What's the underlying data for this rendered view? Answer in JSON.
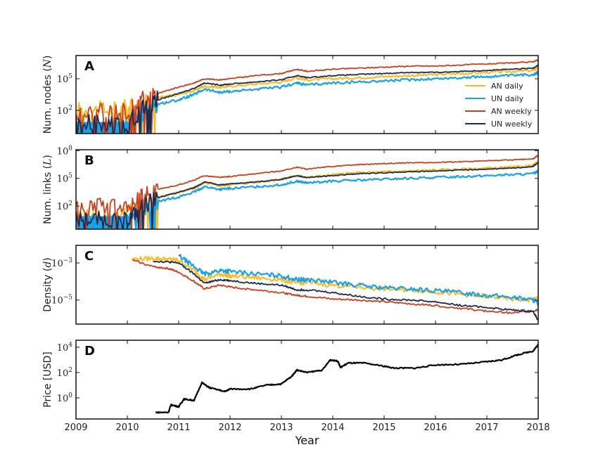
{
  "chart_data": {
    "type": "line",
    "xlabel": "Year",
    "xlim": [
      2009,
      2018
    ],
    "xticks": [
      "2009",
      "2010",
      "2011",
      "2012",
      "2013",
      "2014",
      "2015",
      "2016",
      "2017",
      "2018"
    ],
    "series_colors": {
      "AN daily": "#f6be2c",
      "UN daily": "#1aa1e6",
      "AN weekly": "#c9401e",
      "UN weekly": "#1f2a4f"
    },
    "legend": {
      "placement": "lower-right of panel A",
      "entries": [
        "AN daily",
        "UN daily",
        "AN weekly",
        "UN weekly"
      ]
    },
    "panels": [
      {
        "letter": "A",
        "ylabel": "Num. nodes (N)",
        "yscale": "log",
        "ylim_log10": [
          -0.2,
          7.2
        ],
        "yticks_log10": [
          2,
          5
        ],
        "ytick_labels": [
          "10^2",
          "10^5"
        ],
        "x": [
          2009.0,
          2009.5,
          2010.0,
          2010.3,
          2010.6,
          2011.0,
          2011.3,
          2011.5,
          2011.8,
          2012.0,
          2012.5,
          2013.0,
          2013.3,
          2013.5,
          2014.0,
          2014.5,
          2015.0,
          2015.5,
          2016.0,
          2016.5,
          2017.0,
          2017.5,
          2017.9,
          2018.0
        ],
        "series": [
          {
            "name": "AN daily",
            "log10_values": [
              2.0,
              2.0,
              2.2,
              2.5,
              3.2,
              3.5,
              3.9,
              4.3,
              4.2,
              4.3,
              4.5,
              4.7,
              5.1,
              4.9,
              5.0,
              5.1,
              5.2,
              5.3,
              5.4,
              5.5,
              5.6,
              5.7,
              5.8,
              6.0
            ]
          },
          {
            "name": "UN daily",
            "log10_values": [
              0.5,
              0.5,
              0.5,
              1.8,
              2.6,
              3.0,
              3.5,
              4.0,
              3.7,
              3.8,
              4.0,
              4.2,
              4.6,
              4.4,
              4.6,
              4.7,
              4.8,
              4.9,
              5.0,
              5.1,
              5.2,
              5.3,
              5.4,
              5.6
            ]
          },
          {
            "name": "AN weekly",
            "log10_values": [
              1.7,
              1.8,
              2.0,
              3.0,
              3.6,
              4.2,
              4.6,
              5.0,
              4.9,
              5.0,
              5.3,
              5.5,
              5.9,
              5.7,
              5.9,
              6.0,
              6.1,
              6.2,
              6.2,
              6.3,
              6.4,
              6.5,
              6.6,
              6.8
            ]
          },
          {
            "name": "UN weekly",
            "log10_values": [
              0.8,
              0.7,
              0.6,
              2.3,
              3.0,
              3.6,
              4.1,
              4.6,
              4.4,
              4.5,
              4.7,
              4.9,
              5.3,
              5.1,
              5.3,
              5.4,
              5.5,
              5.6,
              5.6,
              5.7,
              5.8,
              5.9,
              6.0,
              6.3
            ]
          }
        ]
      },
      {
        "letter": "B",
        "ylabel": "Num. links (L)",
        "yscale": "log",
        "ylim_log10": [
          -0.5,
          8.1
        ],
        "yticks_log10": [
          2,
          5,
          8
        ],
        "ytick_labels": [
          "10^2",
          "10^5",
          "10^8"
        ],
        "x": [
          2009.0,
          2009.5,
          2010.0,
          2010.3,
          2010.6,
          2011.0,
          2011.3,
          2011.5,
          2011.8,
          2012.0,
          2012.5,
          2013.0,
          2013.3,
          2013.5,
          2014.0,
          2014.5,
          2015.0,
          2015.5,
          2016.0,
          2016.5,
          2017.0,
          2017.5,
          2017.9,
          2018.0
        ],
        "series": [
          {
            "name": "AN daily",
            "log10_values": [
              1.0,
              1.0,
              1.2,
              2.3,
              3.0,
              3.5,
              3.9,
              4.5,
              4.2,
              4.3,
              4.6,
              4.9,
              5.3,
              5.1,
              5.4,
              5.6,
              5.7,
              5.8,
              5.9,
              6.0,
              6.1,
              6.2,
              6.4,
              6.8
            ]
          },
          {
            "name": "UN daily",
            "log10_values": [
              0.3,
              0.2,
              0.2,
              1.6,
              2.5,
              3.0,
              3.5,
              4.1,
              3.8,
              3.9,
              4.1,
              4.3,
              4.7,
              4.5,
              4.7,
              4.8,
              4.9,
              5.0,
              5.1,
              5.2,
              5.3,
              5.4,
              5.5,
              5.8
            ]
          },
          {
            "name": "AN weekly",
            "log10_values": [
              1.8,
              2.0,
              2.3,
              3.2,
              3.8,
              4.3,
              4.8,
              5.3,
              5.1,
              5.2,
              5.5,
              5.8,
              6.2,
              6.0,
              6.3,
              6.5,
              6.6,
              6.7,
              6.7,
              6.8,
              6.9,
              7.0,
              7.1,
              7.5
            ]
          },
          {
            "name": "UN weekly",
            "log10_values": [
              0.6,
              0.5,
              0.5,
              2.0,
              2.9,
              3.5,
              4.0,
              4.6,
              4.3,
              4.4,
              4.6,
              4.9,
              5.3,
              5.1,
              5.3,
              5.5,
              5.6,
              5.7,
              5.8,
              5.9,
              6.0,
              6.1,
              6.3,
              6.7
            ]
          }
        ]
      },
      {
        "letter": "C",
        "ylabel": "Density (d)",
        "yscale": "log",
        "ylim_log10": [
          -6.3,
          -2.05
        ],
        "yticks_log10": [
          -3,
          -5
        ],
        "ytick_labels": [
          "10^-3",
          "10^-5"
        ],
        "x": [
          2010.1,
          2010.5,
          2010.8,
          2011.0,
          2011.3,
          2011.5,
          2011.8,
          2012.0,
          2012.5,
          2013.0,
          2013.3,
          2013.5,
          2014.0,
          2014.5,
          2015.0,
          2015.5,
          2016.0,
          2016.5,
          2017.0,
          2017.5,
          2017.9,
          2018.0
        ],
        "series": [
          {
            "name": "AN daily",
            "log10_values": [
              -2.8,
              -2.75,
              -2.8,
              -2.85,
              -3.4,
              -3.9,
              -3.6,
              -3.7,
              -3.8,
              -3.9,
              -4.1,
              -4.05,
              -4.2,
              -4.3,
              -4.4,
              -4.45,
              -4.55,
              -4.7,
              -4.8,
              -4.95,
              -5.0,
              -4.9
            ]
          },
          {
            "name": "UN daily",
            "log10_values": [
              null,
              null,
              null,
              -2.6,
              -3.2,
              -3.6,
              -3.4,
              -3.45,
              -3.6,
              -3.7,
              -3.9,
              -3.9,
              -4.05,
              -4.2,
              -4.35,
              -4.4,
              -4.5,
              -4.6,
              -4.75,
              -4.85,
              -5.0,
              -5.2
            ]
          },
          {
            "name": "AN weekly",
            "log10_values": [
              -2.85,
              -3.2,
              -3.3,
              -3.5,
              -4.0,
              -4.4,
              -4.2,
              -4.3,
              -4.45,
              -4.6,
              -4.75,
              -4.8,
              -4.95,
              -5.0,
              -5.1,
              -5.2,
              -5.3,
              -5.45,
              -5.6,
              -5.7,
              -5.6,
              -5.5
            ]
          },
          {
            "name": "UN weekly",
            "log10_values": [
              null,
              -2.9,
              -2.95,
              -3.0,
              -3.6,
              -4.1,
              -3.9,
              -3.95,
              -4.1,
              -4.2,
              -4.45,
              -4.45,
              -4.6,
              -4.8,
              -4.95,
              -5.0,
              -5.1,
              -5.3,
              -5.4,
              -5.55,
              -5.6,
              -6.1
            ]
          }
        ]
      },
      {
        "letter": "D",
        "ylabel": "Price [USD]",
        "yscale": "log",
        "ylim_log10": [
          -1.67,
          4.55
        ],
        "yticks_log10": [
          0,
          2,
          4
        ],
        "ytick_labels": [
          "10^0",
          "10^2",
          "10^4"
        ],
        "x": [
          2010.55,
          2010.8,
          2010.85,
          2011.0,
          2011.1,
          2011.3,
          2011.45,
          2011.6,
          2011.9,
          2012.0,
          2012.4,
          2012.7,
          2013.0,
          2013.2,
          2013.3,
          2013.5,
          2013.8,
          2013.95,
          2014.1,
          2014.15,
          2014.3,
          2014.6,
          2015.0,
          2015.2,
          2015.6,
          2016.0,
          2016.5,
          2017.0,
          2017.3,
          2017.6,
          2017.9,
          2018.0
        ],
        "series": [
          {
            "name": "Price",
            "log10_values": [
              -1.15,
              -1.15,
              -0.55,
              -0.7,
              -0.1,
              -0.2,
              1.2,
              0.8,
              0.5,
              0.7,
              0.7,
              1.0,
              1.1,
              1.7,
              2.2,
              2.0,
              2.2,
              3.0,
              2.9,
              2.4,
              2.75,
              2.75,
              2.5,
              2.35,
              2.35,
              2.6,
              2.65,
              2.85,
              3.0,
              3.4,
              3.7,
              4.2
            ]
          }
        ]
      }
    ]
  }
}
